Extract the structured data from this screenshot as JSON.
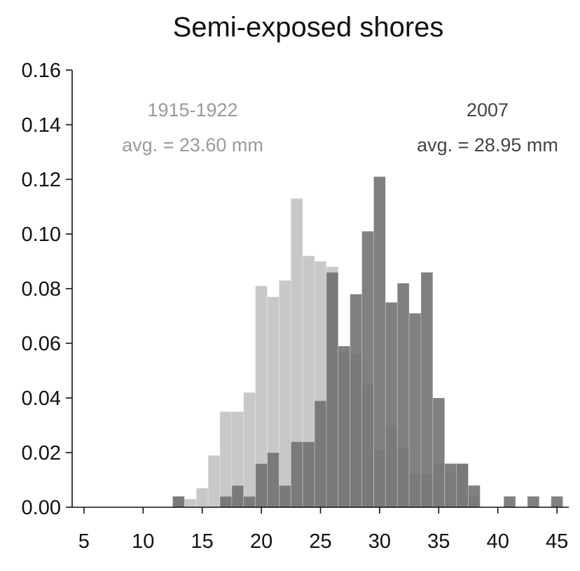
{
  "chart_data": {
    "type": "bar",
    "title": "Semi-exposed shores",
    "xlabel": "",
    "ylabel": "",
    "xlim": [
      4,
      46
    ],
    "ylim": [
      0,
      0.16
    ],
    "bin_width": 1,
    "xticks": [
      "5",
      "10",
      "15",
      "20",
      "25",
      "30",
      "35",
      "40",
      "45"
    ],
    "xtick_values": [
      5,
      10,
      15,
      20,
      25,
      30,
      35,
      40,
      45
    ],
    "yticks": [
      "0.00",
      "0.02",
      "0.04",
      "0.06",
      "0.08",
      "0.10",
      "0.12",
      "0.14",
      "0.16"
    ],
    "ytick_values": [
      0,
      0.02,
      0.04,
      0.06,
      0.08,
      0.1,
      0.12,
      0.14,
      0.16
    ],
    "grid": false,
    "legend": "top",
    "series": [
      {
        "name": "1915-1922",
        "label": "avg. = 23.60 mm",
        "color": "#c8c8c8",
        "bins": [
          13,
          14,
          15,
          16,
          17,
          18,
          19,
          20,
          21,
          22,
          23,
          24,
          25,
          26,
          27,
          28,
          29,
          30,
          31,
          32,
          33,
          34,
          35,
          36,
          37,
          38
        ],
        "values": [
          0.004,
          0.003,
          0.007,
          0.019,
          0.035,
          0.035,
          0.042,
          0.081,
          0.077,
          0.083,
          0.113,
          0.092,
          0.09,
          0.088,
          0.057,
          0.056,
          0.045,
          0.021,
          0.03,
          0.022,
          0.012,
          0.012,
          0.016,
          0.013,
          0.016,
          0.004
        ]
      },
      {
        "name": "2007",
        "label": "avg. = 28.95 mm",
        "color": "#6e6e6e",
        "bins": [
          13,
          17,
          18,
          19,
          20,
          21,
          22,
          23,
          24,
          25,
          26,
          27,
          28,
          29,
          30,
          31,
          32,
          33,
          34,
          35,
          36,
          37,
          38,
          41,
          43,
          45
        ],
        "values": [
          0.004,
          0.004,
          0.008,
          0.004,
          0.016,
          0.02,
          0.008,
          0.024,
          0.024,
          0.039,
          0.086,
          0.059,
          0.078,
          0.101,
          0.121,
          0.075,
          0.082,
          0.071,
          0.086,
          0.04,
          0.016,
          0.016,
          0.008,
          0.004,
          0.004,
          0.004
        ]
      }
    ]
  }
}
